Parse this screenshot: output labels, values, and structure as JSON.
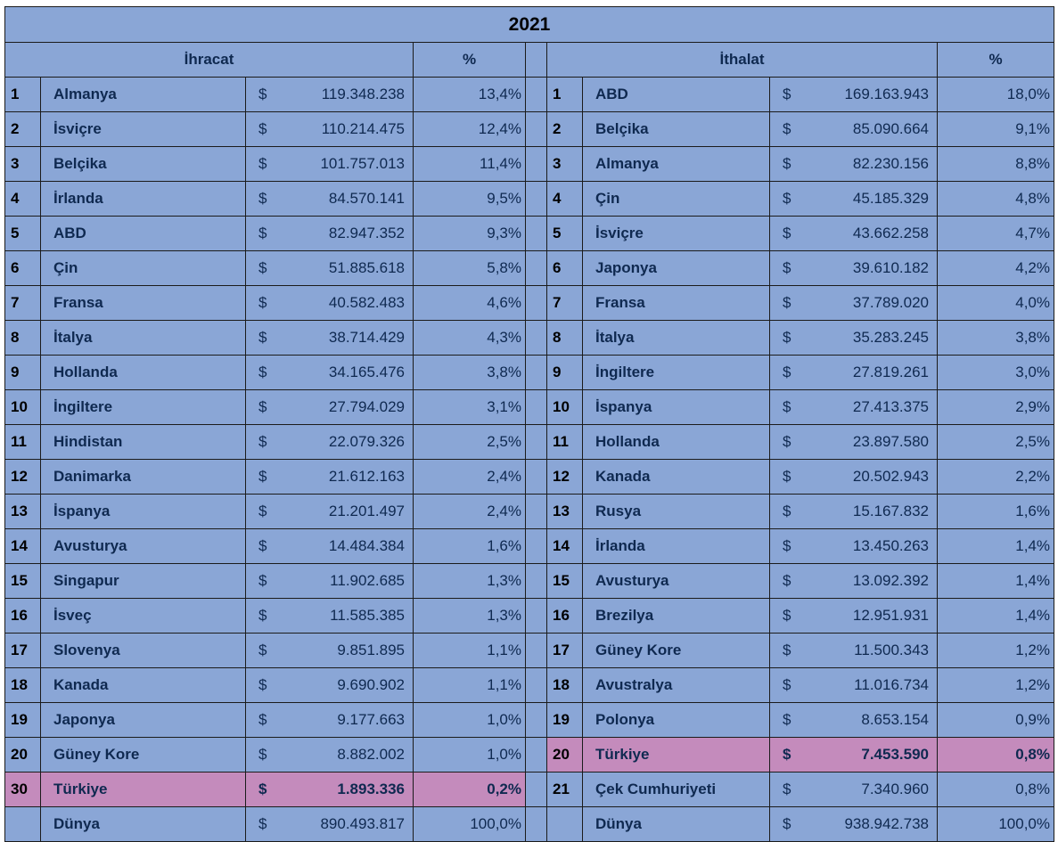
{
  "title": "2021",
  "headers": {
    "export_label": "İhracat",
    "export_pct_label": "%",
    "import_label": "İthalat",
    "import_pct_label": "%"
  },
  "currency_symbol": "$",
  "highlight_color": "#c48bbc",
  "cell_color": "#8aa6d6",
  "rows": [
    {
      "left": {
        "rank": "1",
        "country": "Almanya",
        "amount": "119.348.238",
        "pct": "13,4%"
      },
      "right": {
        "rank": "1",
        "country": "ABD",
        "amount": "169.163.943",
        "pct": "18,0%"
      }
    },
    {
      "left": {
        "rank": "2",
        "country": "İsviçre",
        "amount": "110.214.475",
        "pct": "12,4%"
      },
      "right": {
        "rank": "2",
        "country": "Belçika",
        "amount": "85.090.664",
        "pct": "9,1%"
      }
    },
    {
      "left": {
        "rank": "3",
        "country": "Belçika",
        "amount": "101.757.013",
        "pct": "11,4%"
      },
      "right": {
        "rank": "3",
        "country": "Almanya",
        "amount": "82.230.156",
        "pct": "8,8%"
      }
    },
    {
      "left": {
        "rank": "4",
        "country": "İrlanda",
        "amount": "84.570.141",
        "pct": "9,5%"
      },
      "right": {
        "rank": "4",
        "country": "Çin",
        "amount": "45.185.329",
        "pct": "4,8%"
      }
    },
    {
      "left": {
        "rank": "5",
        "country": "ABD",
        "amount": "82.947.352",
        "pct": "9,3%"
      },
      "right": {
        "rank": "5",
        "country": "İsviçre",
        "amount": "43.662.258",
        "pct": "4,7%"
      }
    },
    {
      "left": {
        "rank": "6",
        "country": "Çin",
        "amount": "51.885.618",
        "pct": "5,8%"
      },
      "right": {
        "rank": "6",
        "country": "Japonya",
        "amount": "39.610.182",
        "pct": "4,2%"
      }
    },
    {
      "left": {
        "rank": "7",
        "country": "Fransa",
        "amount": "40.582.483",
        "pct": "4,6%"
      },
      "right": {
        "rank": "7",
        "country": "Fransa",
        "amount": "37.789.020",
        "pct": "4,0%"
      }
    },
    {
      "left": {
        "rank": "8",
        "country": "İtalya",
        "amount": "38.714.429",
        "pct": "4,3%"
      },
      "right": {
        "rank": "8",
        "country": "İtalya",
        "amount": "35.283.245",
        "pct": "3,8%"
      }
    },
    {
      "left": {
        "rank": "9",
        "country": "Hollanda",
        "amount": "34.165.476",
        "pct": "3,8%"
      },
      "right": {
        "rank": "9",
        "country": "İngiltere",
        "amount": "27.819.261",
        "pct": "3,0%"
      }
    },
    {
      "left": {
        "rank": "10",
        "country": "İngiltere",
        "amount": "27.794.029",
        "pct": "3,1%"
      },
      "right": {
        "rank": "10",
        "country": "İspanya",
        "amount": "27.413.375",
        "pct": "2,9%"
      }
    },
    {
      "left": {
        "rank": "11",
        "country": "Hindistan",
        "amount": "22.079.326",
        "pct": "2,5%"
      },
      "right": {
        "rank": "11",
        "country": "Hollanda",
        "amount": "23.897.580",
        "pct": "2,5%"
      }
    },
    {
      "left": {
        "rank": "12",
        "country": "Danimarka",
        "amount": "21.612.163",
        "pct": "2,4%"
      },
      "right": {
        "rank": "12",
        "country": "Kanada",
        "amount": "20.502.943",
        "pct": "2,2%"
      }
    },
    {
      "left": {
        "rank": "13",
        "country": "İspanya",
        "amount": "21.201.497",
        "pct": "2,4%"
      },
      "right": {
        "rank": "13",
        "country": "Rusya",
        "amount": "15.167.832",
        "pct": "1,6%"
      }
    },
    {
      "left": {
        "rank": "14",
        "country": "Avusturya",
        "amount": "14.484.384",
        "pct": "1,6%"
      },
      "right": {
        "rank": "14",
        "country": "İrlanda",
        "amount": "13.450.263",
        "pct": "1,4%"
      }
    },
    {
      "left": {
        "rank": "15",
        "country": "Singapur",
        "amount": "11.902.685",
        "pct": "1,3%"
      },
      "right": {
        "rank": "15",
        "country": "Avusturya",
        "amount": "13.092.392",
        "pct": "1,4%"
      }
    },
    {
      "left": {
        "rank": "16",
        "country": "İsveç",
        "amount": "11.585.385",
        "pct": "1,3%"
      },
      "right": {
        "rank": "16",
        "country": "Brezilya",
        "amount": "12.951.931",
        "pct": "1,4%"
      }
    },
    {
      "left": {
        "rank": "17",
        "country": "Slovenya",
        "amount": "9.851.895",
        "pct": "1,1%"
      },
      "right": {
        "rank": "17",
        "country": "Güney Kore",
        "amount": "11.500.343",
        "pct": "1,2%"
      }
    },
    {
      "left": {
        "rank": "18",
        "country": "Kanada",
        "amount": "9.690.902",
        "pct": "1,1%"
      },
      "right": {
        "rank": "18",
        "country": "Avustralya",
        "amount": "11.016.734",
        "pct": "1,2%"
      }
    },
    {
      "left": {
        "rank": "19",
        "country": "Japonya",
        "amount": "9.177.663",
        "pct": "1,0%"
      },
      "right": {
        "rank": "19",
        "country": "Polonya",
        "amount": "8.653.154",
        "pct": "0,9%"
      }
    },
    {
      "left": {
        "rank": "20",
        "country": "Güney Kore",
        "amount": "8.882.002",
        "pct": "1,0%"
      },
      "right": {
        "rank": "20",
        "country": "Türkiye",
        "amount": "7.453.590",
        "pct": "0,8%",
        "highlight": true
      }
    },
    {
      "left": {
        "rank": "30",
        "country": "Türkiye",
        "amount": "1.893.336",
        "pct": "0,2%",
        "highlight": true
      },
      "right": {
        "rank": "21",
        "country": "Çek Cumhuriyeti",
        "amount": "7.340.960",
        "pct": "0,8%"
      }
    },
    {
      "left": {
        "rank": "",
        "country": "Dünya",
        "amount": "890.493.817",
        "pct": "100,0%"
      },
      "right": {
        "rank": "",
        "country": "Dünya",
        "amount": "938.942.738",
        "pct": "100,0%"
      }
    }
  ]
}
